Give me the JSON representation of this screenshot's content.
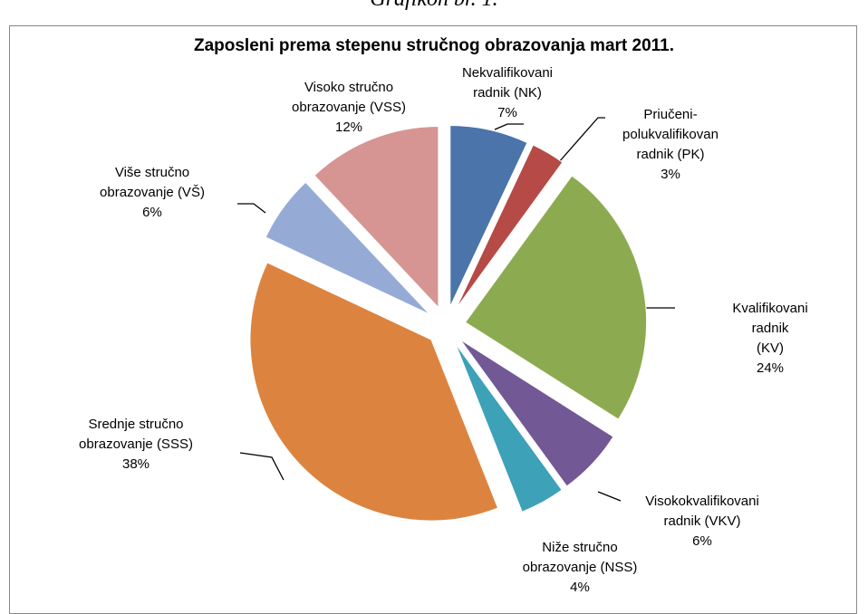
{
  "caption": "Grafikon br. 1.",
  "chart_data": {
    "type": "pie",
    "title": "Zaposleni prema stepenu stručnog obrazovanja mart 2011.",
    "categories": [
      "Nekvalifikovani\nradnik (NK)",
      "Priučeni-\npolukvalifikovan\nradnik (PK)",
      "Kvalifikovani radnik\n(KV)",
      "Visokokvalifikovani\nradnik (VKV)",
      "Niže stručno\nobrazovanje (NSS)",
      "Srednje stručno\nobrazovanje (SSS)",
      "Više stručno\nobrazovanje (VŠ)",
      "Visoko stručno\nobrazovanje (VSS)"
    ],
    "values": [
      7,
      3,
      24,
      6,
      4,
      38,
      6,
      12
    ],
    "value_labels": [
      "7%",
      "3%",
      "24%",
      "6%",
      "4%",
      "38%",
      "6%",
      "12%"
    ],
    "colors": [
      "#4a74aa",
      "#b64a46",
      "#8cab51",
      "#725894",
      "#3da1b8",
      "#dc843f",
      "#95abd6",
      "#d69592"
    ]
  }
}
